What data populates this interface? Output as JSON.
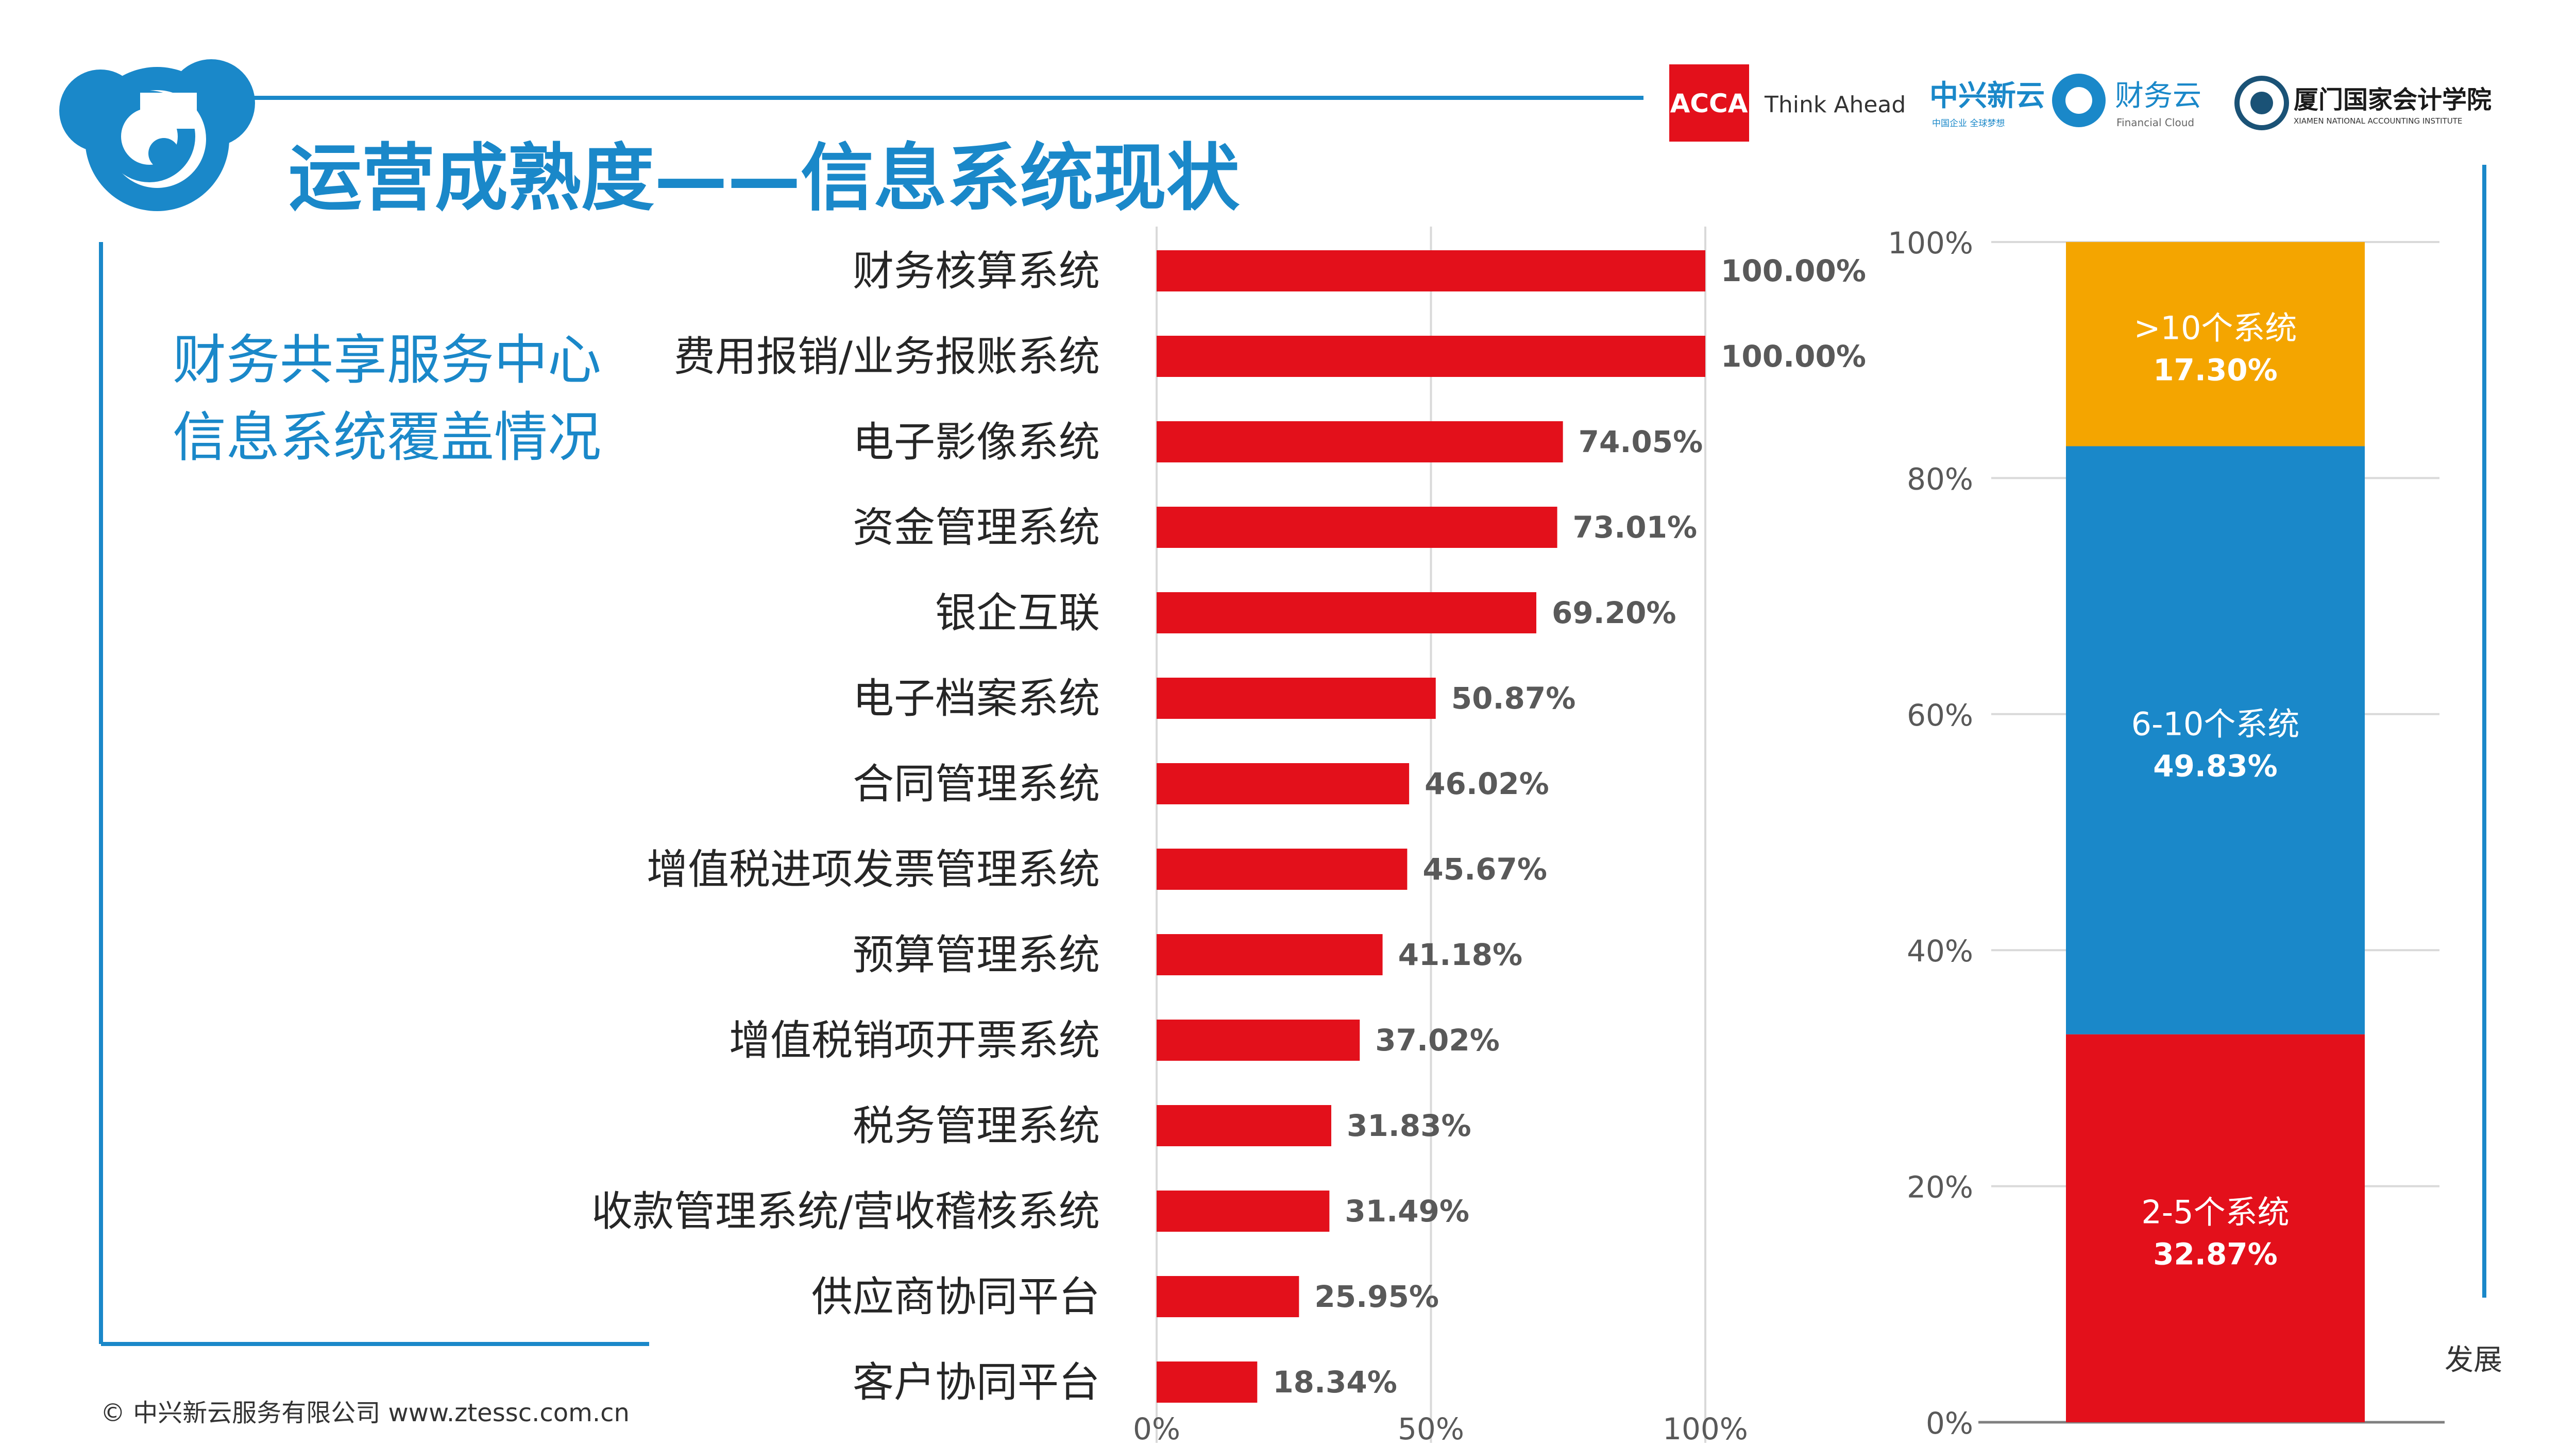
{
  "header": {
    "title": "运营成熟度——信息系统现状",
    "logos": {
      "acca_mark": "ACCA",
      "acca_tagline": "Think Ahead",
      "zte_name": "中兴新云",
      "zte_sub": "中国企业 全球梦想",
      "cloud_name": "财务云",
      "cloud_sub": "Financial Cloud",
      "xnai_name": "厦门国家会计学院",
      "xnai_sub": "XIAMEN NATIONAL ACCOUNTING INSTITUTE"
    }
  },
  "subtitle": {
    "line1": "财务共享服务中心",
    "line2": "信息系统覆盖情况"
  },
  "footer": {
    "copyright": "© 中兴新云服务有限公司  www.ztessc.com.cn",
    "fragment": "发展"
  },
  "colors": {
    "accent": "#1a88c9",
    "bar": "#e3101b",
    "orange": "#f4a500",
    "blue": "#1a88c9",
    "red": "#e3101b"
  },
  "chart_data": [
    {
      "type": "bar",
      "orientation": "horizontal",
      "categories": [
        "财务核算系统",
        "费用报销/业务报账系统",
        "电子影像系统",
        "资金管理系统",
        "银企互联",
        "电子档案系统",
        "合同管理系统",
        "增值税进项发票管理系统",
        "预算管理系统",
        "增值税销项开票系统",
        "税务管理系统",
        "收款管理系统/营收稽核系统",
        "供应商协同平台",
        "客户协同平台"
      ],
      "values": [
        100.0,
        100.0,
        74.05,
        73.01,
        69.2,
        50.87,
        46.02,
        45.67,
        41.18,
        37.02,
        31.83,
        31.49,
        25.95,
        18.34
      ],
      "value_labels": [
        "100.00%",
        "100.00%",
        "74.05%",
        "73.01%",
        "69.20%",
        "50.87%",
        "46.02%",
        "45.67%",
        "41.18%",
        "37.02%",
        "31.83%",
        "31.49%",
        "25.95%",
        "18.34%"
      ],
      "xlim": [
        0,
        100
      ],
      "x_ticks": [
        "0%",
        "50%",
        "100%"
      ],
      "grid": true
    },
    {
      "type": "bar",
      "orientation": "stacked-vertical",
      "segments": [
        {
          "label": "2-5个系统",
          "value": 32.87,
          "value_label": "32.87%",
          "color": "#e3101b"
        },
        {
          "label": "6-10个系统",
          "value": 49.83,
          "value_label": "49.83%",
          "color": "#1a88c9"
        },
        {
          "label": ">10个系统",
          "value": 17.3,
          "value_label": "17.30%",
          "color": "#f4a500"
        }
      ],
      "ylim": [
        0,
        100
      ],
      "y_ticks": [
        "0%",
        "20%",
        "40%",
        "60%",
        "80%",
        "100%"
      ],
      "grid": true
    }
  ]
}
